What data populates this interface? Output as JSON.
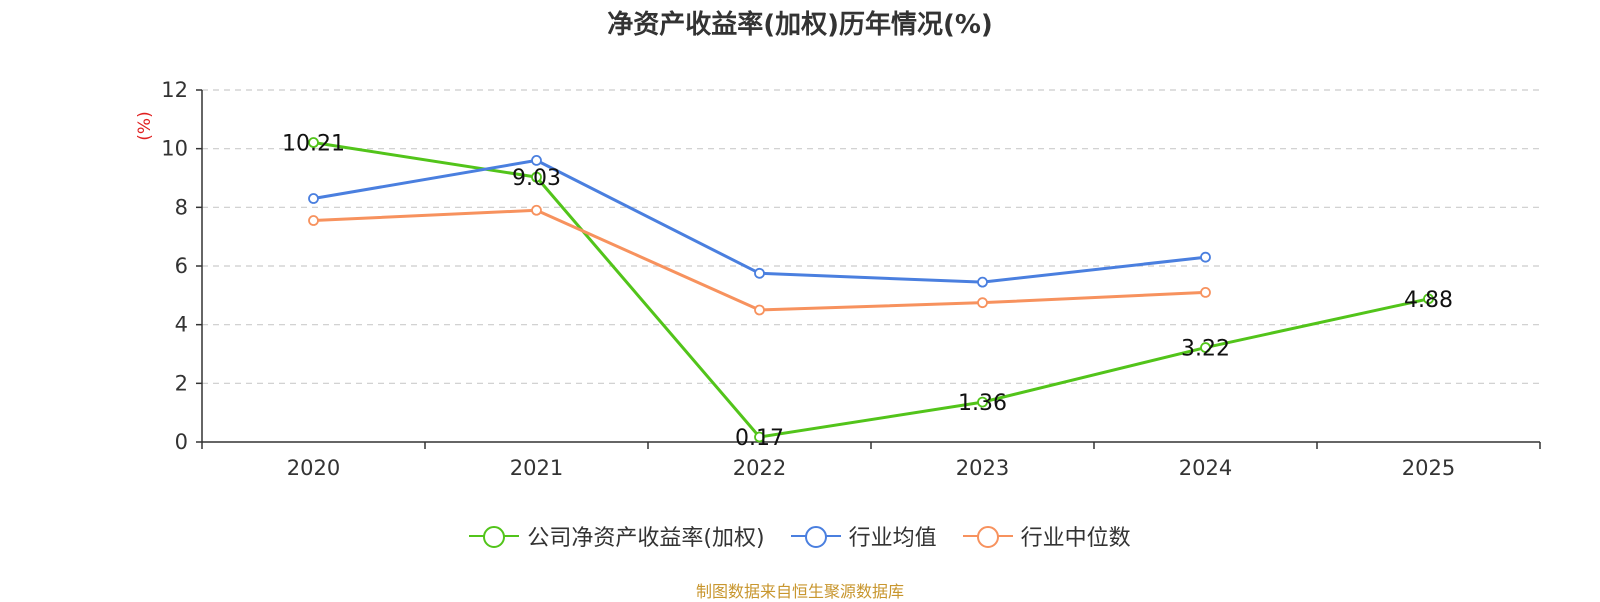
{
  "chart_data": {
    "type": "line",
    "title": "净资产收益率(加权)历年情况(%)",
    "ylabel": "(%)",
    "xlabel": "",
    "categories": [
      "2020",
      "2021",
      "2022",
      "2023",
      "2024",
      "2025"
    ],
    "ylim": [
      0,
      12
    ],
    "yticks": [
      0,
      2,
      4,
      6,
      8,
      10,
      12
    ],
    "grid": true,
    "legend_position": "bottom-center",
    "series": [
      {
        "name": "公司净资产收益率(加权)",
        "color": "#52c41a",
        "values": [
          10.21,
          9.03,
          0.17,
          1.36,
          3.22,
          4.88
        ],
        "labels": [
          "10.21",
          "9.03",
          "0.17",
          "1.36",
          "3.22",
          "4.88"
        ],
        "show_labels": true
      },
      {
        "name": "行业均值",
        "color": "#4a7fdf",
        "values": [
          8.3,
          9.6,
          5.75,
          5.45,
          6.3,
          null
        ],
        "show_labels": false
      },
      {
        "name": "行业中位数",
        "color": "#f7925e",
        "values": [
          7.55,
          7.9,
          4.5,
          4.75,
          5.1,
          null
        ],
        "show_labels": false
      }
    ],
    "source": "制图数据来自恒生聚源数据库",
    "colors": {
      "axis": "#333333",
      "grid": "#cccccc",
      "ylabel": "#e02020",
      "source": "#c8962e"
    }
  }
}
